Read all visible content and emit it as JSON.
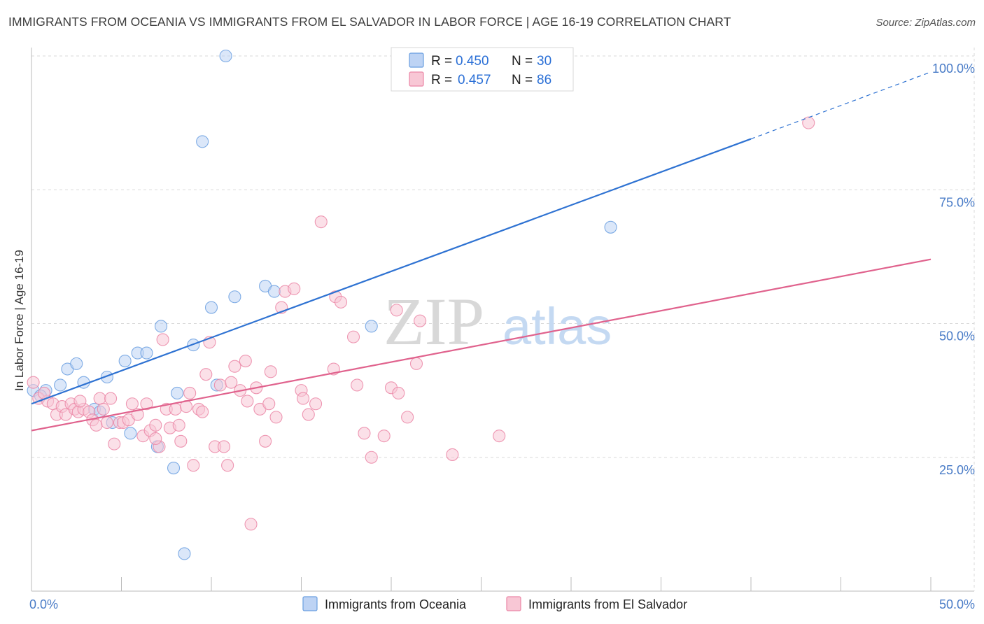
{
  "title": "IMMIGRANTS FROM OCEANIA VS IMMIGRANTS FROM EL SALVADOR IN LABOR FORCE | AGE 16-19 CORRELATION CHART",
  "source": "Source: ZipAtlas.com",
  "watermark": {
    "zip": "ZIP",
    "atlas": "atlas"
  },
  "chart_data": {
    "type": "scatter",
    "xlabel": "",
    "ylabel": "In Labor Force | Age 16-19",
    "xlim": [
      0,
      50
    ],
    "ylim": [
      0,
      100
    ],
    "x_tick_labels": [
      {
        "value": 0,
        "label": "0.0%"
      },
      {
        "value": 50,
        "label": "50.0%"
      }
    ],
    "y_tick_labels": [
      {
        "value": 25,
        "label": "25.0%"
      },
      {
        "value": 50,
        "label": "50.0%"
      },
      {
        "value": 75,
        "label": "75.0%"
      },
      {
        "value": 100,
        "label": "100.0%"
      }
    ],
    "colors": {
      "oceania": "#6a9fe0",
      "oceania_fill": "#bdd3f4",
      "oceania_line": "#2e72d2",
      "salvador": "#eb86a6",
      "salvador_fill": "#f8c7d5",
      "salvador_line": "#e0628d",
      "grid": "#d9d9d9"
    },
    "legend": {
      "r_label": "R =",
      "n_label": "N =",
      "entries": [
        {
          "r": "0.450",
          "n": "30"
        },
        {
          "r": "0.457",
          "n": "86"
        }
      ]
    },
    "series": [
      {
        "name": "Immigrants from Oceania",
        "trend": {
          "x0": 0,
          "y0": 35,
          "x1": 40,
          "y1": 84.5,
          "dash_x1": 50,
          "dash_y1": 97
        },
        "points": [
          [
            0.1,
            37.5
          ],
          [
            0.8,
            37.5
          ],
          [
            1.6,
            38.5
          ],
          [
            2.0,
            41.5
          ],
          [
            2.5,
            42.5
          ],
          [
            2.9,
            39
          ],
          [
            3.5,
            34
          ],
          [
            4.2,
            40
          ],
          [
            4.5,
            31.5
          ],
          [
            5.2,
            43
          ],
          [
            5.5,
            29.5
          ],
          [
            5.9,
            44.5
          ],
          [
            6.4,
            44.5
          ],
          [
            7.0,
            27
          ],
          [
            7.2,
            49.5
          ],
          [
            7.9,
            23
          ],
          [
            8.1,
            37
          ],
          [
            8.5,
            7
          ],
          [
            9.0,
            46
          ],
          [
            9.5,
            84
          ],
          [
            10.0,
            53
          ],
          [
            10.3,
            38.5
          ],
          [
            10.8,
            100
          ],
          [
            11.3,
            55
          ],
          [
            13.0,
            57
          ],
          [
            13.5,
            56
          ],
          [
            18.9,
            49.5
          ],
          [
            32.2,
            68
          ],
          [
            0.5,
            36.5
          ],
          [
            3.8,
            33.5
          ]
        ]
      },
      {
        "name": "Immigrants from El Salvador",
        "trend": {
          "x0": 0,
          "y0": 30,
          "x1": 50,
          "y1": 62
        },
        "points": [
          [
            0.1,
            39
          ],
          [
            0.4,
            36
          ],
          [
            0.9,
            35.5
          ],
          [
            1.2,
            35
          ],
          [
            1.4,
            33
          ],
          [
            1.7,
            34.5
          ],
          [
            1.9,
            33
          ],
          [
            2.2,
            35
          ],
          [
            2.4,
            34
          ],
          [
            2.6,
            33.5
          ],
          [
            2.9,
            34
          ],
          [
            3.2,
            33.5
          ],
          [
            3.4,
            32
          ],
          [
            3.6,
            31
          ],
          [
            3.8,
            36
          ],
          [
            4.0,
            34
          ],
          [
            4.2,
            31.5
          ],
          [
            4.4,
            36
          ],
          [
            4.6,
            27.5
          ],
          [
            4.9,
            31.5
          ],
          [
            5.1,
            31.5
          ],
          [
            5.4,
            32
          ],
          [
            5.6,
            35
          ],
          [
            5.9,
            33
          ],
          [
            6.2,
            29
          ],
          [
            6.4,
            35
          ],
          [
            6.6,
            30
          ],
          [
            6.9,
            31
          ],
          [
            7.1,
            27
          ],
          [
            7.3,
            47
          ],
          [
            7.5,
            34
          ],
          [
            7.7,
            30.5
          ],
          [
            8.0,
            34
          ],
          [
            8.2,
            31
          ],
          [
            8.3,
            28
          ],
          [
            8.6,
            34.5
          ],
          [
            8.8,
            37
          ],
          [
            9.0,
            23.5
          ],
          [
            9.3,
            34
          ],
          [
            9.5,
            33.5
          ],
          [
            9.7,
            40.5
          ],
          [
            9.9,
            46.5
          ],
          [
            10.2,
            27
          ],
          [
            10.5,
            38.5
          ],
          [
            10.7,
            27
          ],
          [
            10.9,
            23.5
          ],
          [
            11.1,
            39
          ],
          [
            11.3,
            42
          ],
          [
            11.6,
            37.5
          ],
          [
            11.9,
            43
          ],
          [
            12.0,
            35.5
          ],
          [
            12.2,
            12.5
          ],
          [
            12.5,
            38
          ],
          [
            12.7,
            34
          ],
          [
            13.0,
            28
          ],
          [
            13.2,
            35
          ],
          [
            13.3,
            41
          ],
          [
            13.6,
            32.5
          ],
          [
            13.9,
            53
          ],
          [
            14.1,
            56
          ],
          [
            14.6,
            56.5
          ],
          [
            15.0,
            37.5
          ],
          [
            15.4,
            33
          ],
          [
            15.8,
            35
          ],
          [
            16.1,
            69
          ],
          [
            16.8,
            41.5
          ],
          [
            16.9,
            55
          ],
          [
            17.2,
            54
          ],
          [
            17.9,
            47.5
          ],
          [
            18.1,
            38.5
          ],
          [
            18.5,
            29.5
          ],
          [
            18.9,
            25
          ],
          [
            19.6,
            29
          ],
          [
            20.0,
            38
          ],
          [
            20.4,
            37
          ],
          [
            20.3,
            52.5
          ],
          [
            20.9,
            32.5
          ],
          [
            21.4,
            42.5
          ],
          [
            21.6,
            50.5
          ],
          [
            23.4,
            25.5
          ],
          [
            26.0,
            29
          ],
          [
            43.2,
            87.5
          ],
          [
            0.7,
            37
          ],
          [
            2.7,
            35.5
          ],
          [
            6.9,
            28.5
          ],
          [
            15.1,
            36
          ]
        ]
      }
    ]
  },
  "bottom_legend": [
    {
      "label": "Immigrants from Oceania"
    },
    {
      "label": "Immigrants from El Salvador"
    }
  ]
}
